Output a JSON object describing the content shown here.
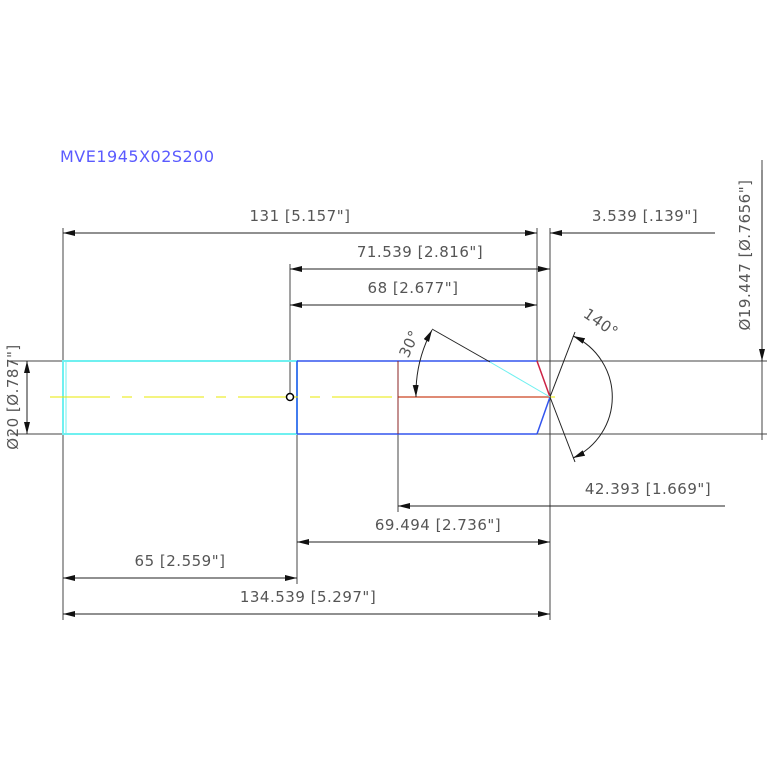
{
  "title": "MVE1945X02S200",
  "dimensions": {
    "overall_shank": "131 [5.157\"]",
    "point_offset": "3.539 [.139\"]",
    "to_tip_from_step": "71.539 [2.816\"]",
    "flute_length": "68 [2.677\"]",
    "shank_diameter": "Ø20 [Ø.787\"]",
    "body_diameter": "Ø19.447 [Ø.7656\"]",
    "helix_angle": "30°",
    "point_angle": "140°",
    "cutting_length": "42.393 [1.669\"]",
    "body_length": "69.494 [2.736\"]",
    "shank_length": "65 [2.559\"]",
    "overall_length": "134.539 [5.297\"]"
  },
  "colors": {
    "shank": "#6ff0f0",
    "body": "#3355ee",
    "centerline": "#e8e800",
    "title": "#5a5aff",
    "tip_edge": "#cc2244",
    "dim": "#333333"
  }
}
